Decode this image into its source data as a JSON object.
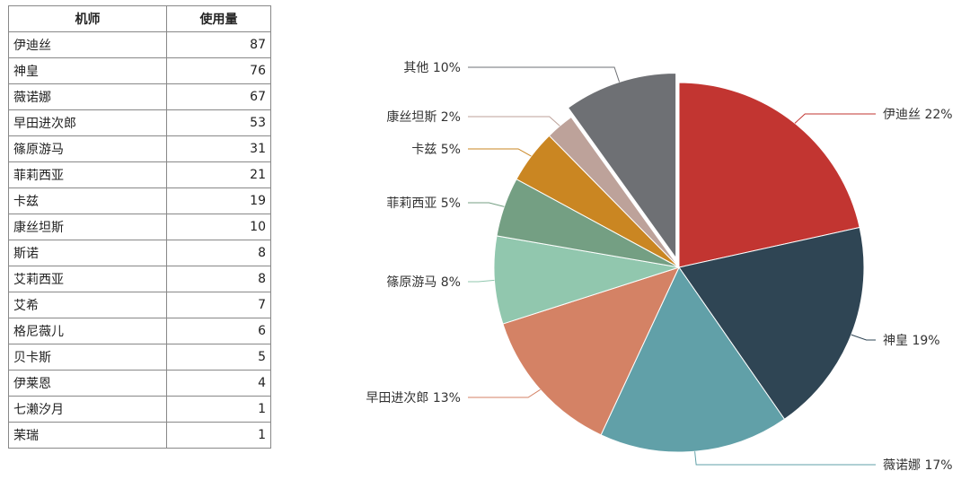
{
  "table": {
    "headers": [
      "机师",
      "使用量"
    ],
    "rows": [
      [
        "伊迪丝",
        "87"
      ],
      [
        "神皇",
        "76"
      ],
      [
        "薇诺娜",
        "67"
      ],
      [
        "早田进次郎",
        "53"
      ],
      [
        "篠原游马",
        "31"
      ],
      [
        "菲莉西亚",
        "21"
      ],
      [
        "卡兹",
        "19"
      ],
      [
        "康丝坦斯",
        "10"
      ],
      [
        "斯诺",
        "8"
      ],
      [
        "艾莉西亚",
        "8"
      ],
      [
        "艾希",
        "7"
      ],
      [
        "格尼薇儿",
        "6"
      ],
      [
        "贝卡斯",
        "5"
      ],
      [
        "伊莱恩",
        "4"
      ],
      [
        "七濑汐月",
        "1"
      ],
      [
        "茉瑞",
        "1"
      ]
    ]
  },
  "chart_data": {
    "type": "pie",
    "start": "top, clockwise",
    "exploded": "其他",
    "slices": [
      {
        "name": "伊迪丝",
        "value": 87,
        "label": "伊迪丝 22%",
        "color": "#c23531"
      },
      {
        "name": "神皇",
        "value": 76,
        "label": "神皇 19%",
        "color": "#2f4554"
      },
      {
        "name": "薇诺娜",
        "value": 67,
        "label": "薇诺娜 17%",
        "color": "#61a0a8"
      },
      {
        "name": "早田进次郎",
        "value": 53,
        "label": "早田进次郎 13%",
        "color": "#d48265"
      },
      {
        "name": "篠原游马",
        "value": 31,
        "label": "篠原游马 8%",
        "color": "#91c7ae"
      },
      {
        "name": "菲莉西亚",
        "value": 21,
        "label": "菲莉西亚 5%",
        "color": "#749f83"
      },
      {
        "name": "卡兹",
        "value": 19,
        "label": "卡兹 5%",
        "color": "#ca8622"
      },
      {
        "name": "康丝坦斯",
        "value": 10,
        "label": "康丝坦斯 2%",
        "color": "#bda29a"
      },
      {
        "name": "其他",
        "value": 40,
        "label": "其他 10%",
        "color": "#6e7074"
      }
    ]
  }
}
